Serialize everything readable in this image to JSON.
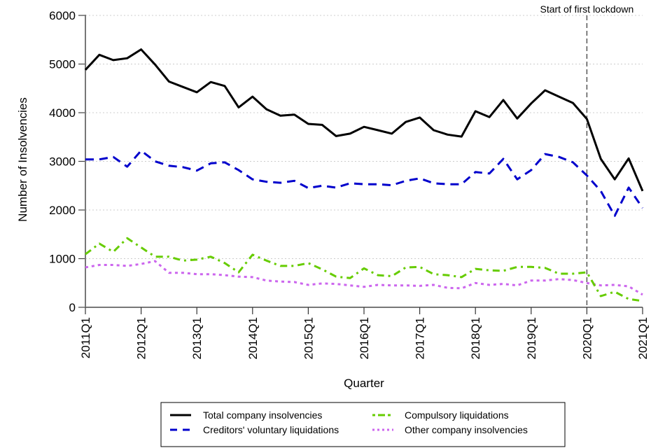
{
  "chart_data": {
    "type": "line",
    "title": "",
    "xlabel": "Quarter",
    "ylabel": "Number of Insolvencies",
    "ylim": [
      0,
      6000
    ],
    "yticks": [
      0,
      1000,
      2000,
      3000,
      4000,
      5000,
      6000
    ],
    "grid": "horizontal-dotted",
    "legend_position": "bottom",
    "x": [
      "2011Q1",
      "2011Q2",
      "2011Q3",
      "2011Q4",
      "2012Q1",
      "2012Q2",
      "2012Q3",
      "2012Q4",
      "2013Q1",
      "2013Q2",
      "2013Q3",
      "2013Q4",
      "2014Q1",
      "2014Q2",
      "2014Q3",
      "2014Q4",
      "2015Q1",
      "2015Q2",
      "2015Q3",
      "2015Q4",
      "2016Q1",
      "2016Q2",
      "2016Q3",
      "2016Q4",
      "2017Q1",
      "2017Q2",
      "2017Q3",
      "2017Q4",
      "2018Q1",
      "2018Q2",
      "2018Q3",
      "2018Q4",
      "2019Q1",
      "2019Q2",
      "2019Q3",
      "2019Q4",
      "2020Q1",
      "2020Q2",
      "2020Q3",
      "2020Q4",
      "2021Q1"
    ],
    "xtick_labels": [
      "2011Q1",
      "2012Q1",
      "2013Q1",
      "2014Q1",
      "2015Q1",
      "2016Q1",
      "2017Q1",
      "2018Q1",
      "2019Q1",
      "2020Q1",
      "2021Q1"
    ],
    "series": [
      {
        "name": "Total company insolvencies",
        "color": "#000000",
        "dash": "solid",
        "values": [
          4880,
          5190,
          5080,
          5120,
          5300,
          4990,
          4640,
          4530,
          4420,
          4630,
          4550,
          4110,
          4330,
          4070,
          3940,
          3960,
          3770,
          3750,
          3520,
          3570,
          3710,
          3640,
          3570,
          3810,
          3900,
          3640,
          3550,
          3510,
          4030,
          3910,
          4260,
          3880,
          4190,
          4460,
          4330,
          4200,
          3870,
          3050,
          2630,
          3060,
          2390
        ]
      },
      {
        "name": "Creditors' voluntary liquidations",
        "color": "#0000CC",
        "dash": "dashed",
        "values": [
          3040,
          3040,
          3090,
          2890,
          3220,
          3000,
          2910,
          2880,
          2810,
          2960,
          2980,
          2820,
          2630,
          2580,
          2560,
          2600,
          2450,
          2500,
          2460,
          2550,
          2530,
          2530,
          2510,
          2600,
          2650,
          2550,
          2530,
          2530,
          2780,
          2750,
          3050,
          2630,
          2820,
          3150,
          3090,
          2980,
          2710,
          2390,
          1880,
          2460,
          2040
        ]
      },
      {
        "name": "Compulsory liquidations",
        "color": "#66CC00",
        "dash": "dashdot",
        "values": [
          1090,
          1310,
          1140,
          1420,
          1230,
          1040,
          1040,
          960,
          980,
          1040,
          910,
          720,
          1080,
          960,
          850,
          850,
          910,
          780,
          630,
          600,
          800,
          660,
          640,
          820,
          830,
          680,
          660,
          620,
          790,
          760,
          750,
          830,
          830,
          810,
          690,
          690,
          720,
          230,
          320,
          170,
          130
        ]
      },
      {
        "name": "Other company insolvencies",
        "color": "#CC66EE",
        "dash": "dotted",
        "values": [
          820,
          870,
          870,
          850,
          890,
          950,
          710,
          710,
          680,
          680,
          660,
          630,
          620,
          550,
          530,
          520,
          460,
          490,
          480,
          450,
          420,
          460,
          450,
          450,
          440,
          460,
          400,
          390,
          500,
          460,
          480,
          450,
          550,
          550,
          580,
          560,
          500,
          450,
          460,
          430,
          260
        ]
      }
    ],
    "annotations": [
      {
        "text": "Start of first lockdown",
        "x": "2020Q1",
        "type": "vertical-dashed-line",
        "color": "#555555"
      }
    ]
  }
}
